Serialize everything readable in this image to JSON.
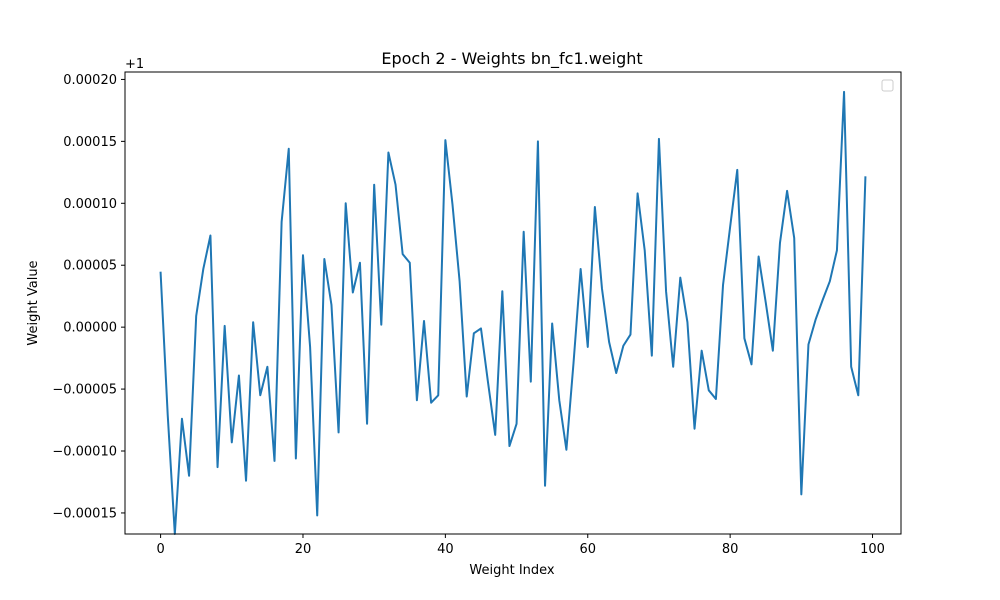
{
  "chart_data": {
    "type": "line",
    "title": "Epoch 2 - Weights bn_fc1.weight",
    "xlabel": "Weight Index",
    "ylabel": "Weight Value",
    "offset_label": "+1",
    "offset": 1,
    "xlim": [
      -5,
      104
    ],
    "ylim": [
      -0.000167,
      0.000206
    ],
    "xticks": [
      0,
      20,
      40,
      60,
      80,
      100
    ],
    "xtick_labels": [
      "0",
      "20",
      "40",
      "60",
      "80",
      "100"
    ],
    "yticks": [
      -0.00015,
      -0.0001,
      -5e-05,
      0,
      5e-05,
      0.0001,
      0.00015,
      0.0002
    ],
    "ytick_labels": [
      "−0.00015",
      "−0.00010",
      "−0.00005",
      "0.00000",
      "0.00005",
      "0.00010",
      "0.00015",
      "0.00020"
    ],
    "grid": false,
    "legend": "top-right (empty)",
    "series": [
      {
        "color": "#1f77b4",
        "x": [
          0,
          1,
          2,
          3,
          4,
          5,
          6,
          7,
          8,
          9,
          10,
          11,
          12,
          13,
          14,
          15,
          16,
          17,
          18,
          19,
          20,
          21,
          22,
          23,
          24,
          25,
          26,
          27,
          28,
          29,
          30,
          31,
          32,
          33,
          34,
          35,
          36,
          37,
          38,
          39,
          40,
          41,
          42,
          43,
          44,
          45,
          46,
          47,
          48,
          49,
          50,
          51,
          52,
          53,
          54,
          55,
          56,
          57,
          58,
          59,
          60,
          61,
          62,
          63,
          64,
          65,
          66,
          67,
          68,
          69,
          70,
          71,
          72,
          73,
          74,
          75,
          76,
          77,
          78,
          79,
          80,
          81,
          82,
          83,
          84,
          85,
          86,
          87,
          88,
          89,
          90,
          91,
          92,
          93,
          94,
          95,
          96,
          97,
          98,
          99
        ],
        "values": [
          4.4e-05,
          -7.1e-05,
          -0.000167,
          -7.4e-05,
          -0.00012,
          9e-06,
          4.7e-05,
          7.4e-05,
          -0.000113,
          1e-06,
          -9.3e-05,
          -3.9e-05,
          -0.000124,
          4e-06,
          -5.5e-05,
          -3.2e-05,
          -0.000108,
          8.5e-05,
          0.000144,
          -0.000106,
          5.8e-05,
          -1.6e-05,
          -0.000152,
          5.5e-05,
          1.8e-05,
          -8.5e-05,
          0.0001,
          2.8e-05,
          5.2e-05,
          -7.8e-05,
          0.000115,
          2e-06,
          0.000141,
          0.000115,
          5.9e-05,
          5.2e-05,
          -5.9e-05,
          5e-06,
          -6.1e-05,
          -5.5e-05,
          0.000151,
          9.9e-05,
          3.7e-05,
          -5.6e-05,
          -5e-06,
          -1e-06,
          -4.5e-05,
          -8.7e-05,
          2.9e-05,
          -9.6e-05,
          -7.8e-05,
          7.7e-05,
          -4.4e-05,
          0.00015,
          -0.000128,
          3e-06,
          -5.9e-05,
          -9.9e-05,
          -2.9e-05,
          4.7e-05,
          -1.6e-05,
          9.7e-05,
          3.1e-05,
          -1.2e-05,
          -3.7e-05,
          -1.5e-05,
          -6e-06,
          0.000108,
          6.2e-05,
          -2.3e-05,
          0.000152,
          2.9e-05,
          -3.2e-05,
          4e-05,
          4e-06,
          -8.2e-05,
          -1.9e-05,
          -5.1e-05,
          -5.8e-05,
          3.4e-05,
          8.1e-05,
          0.000127,
          -9e-06,
          -3e-05,
          5.7e-05,
          2e-05,
          -1.9e-05,
          6.8e-05,
          0.00011,
          7.2e-05,
          -0.000135,
          -1.4e-05,
          6e-06,
          2.2e-05,
          3.7e-05,
          6.2e-05,
          0.00019,
          -3.2e-05,
          -5.5e-05,
          0.000121
        ]
      }
    ]
  }
}
